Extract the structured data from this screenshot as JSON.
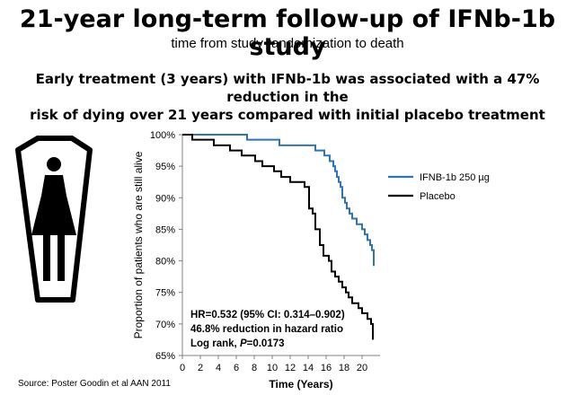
{
  "header": {
    "title": "21-year long-term follow-up of IFNb-1b study",
    "subtitle": "time from study randomization to death",
    "headline_line1": "Early treatment (3 years) with IFNb-1b was associated with a 47% reduction in the",
    "headline_line2": "risk of dying over 21 years compared with initial placebo treatment"
  },
  "footer": {
    "source": "Source: Poster Goodin  et al AAN 2011"
  },
  "annotation": {
    "line1": "HR=0.532  (95% CI: 0.314–0.902)",
    "line2": "46.8% reduction  in hazard ratio",
    "line3_prefix": "Log rank, ",
    "line3_p": "P",
    "line3_suffix": "=0.0173"
  },
  "colors": {
    "ifnb": "#2f74b5",
    "placebo": "#000000",
    "axis": "#808080",
    "icon_fill": "#000000"
  },
  "icon": "coffin-with-figure-icon",
  "chart_data": {
    "type": "line",
    "step": true,
    "xlabel": "Time (Years)",
    "ylabel": "Proportion of patients who are still alive",
    "xlim": [
      0,
      22
    ],
    "ylim": [
      65,
      100
    ],
    "xticks": [
      0,
      2,
      4,
      6,
      8,
      10,
      12,
      14,
      16,
      18,
      20
    ],
    "yticks": [
      65,
      70,
      75,
      80,
      85,
      90,
      95,
      100
    ],
    "ytick_labels": [
      "65%",
      "70%",
      "75%",
      "80%",
      "85%",
      "90%",
      "95%",
      "100%"
    ],
    "legend_position": "right",
    "series": [
      {
        "name": "IFNB-1b 250 µg",
        "color": "#2f74b5",
        "points": [
          [
            0,
            100
          ],
          [
            7.2,
            100
          ],
          [
            7.2,
            99.2
          ],
          [
            10.8,
            99.2
          ],
          [
            10.8,
            98.3
          ],
          [
            14.8,
            98.3
          ],
          [
            14.8,
            97.5
          ],
          [
            15.8,
            97.5
          ],
          [
            15.8,
            96.7
          ],
          [
            16.4,
            96.7
          ],
          [
            16.4,
            95.8
          ],
          [
            16.8,
            95.8
          ],
          [
            16.8,
            95.0
          ],
          [
            17.0,
            95.0
          ],
          [
            17.0,
            94.2
          ],
          [
            17.2,
            94.2
          ],
          [
            17.2,
            93.3
          ],
          [
            17.4,
            93.3
          ],
          [
            17.4,
            92.5
          ],
          [
            17.6,
            92.5
          ],
          [
            17.6,
            91.7
          ],
          [
            17.8,
            91.7
          ],
          [
            17.8,
            90.0
          ],
          [
            18.1,
            90.0
          ],
          [
            18.1,
            89.2
          ],
          [
            18.3,
            89.2
          ],
          [
            18.3,
            88.3
          ],
          [
            18.6,
            88.3
          ],
          [
            18.6,
            87.5
          ],
          [
            18.9,
            87.5
          ],
          [
            18.9,
            86.7
          ],
          [
            19.4,
            86.7
          ],
          [
            19.4,
            85.8
          ],
          [
            20.0,
            85.8
          ],
          [
            20.0,
            85.0
          ],
          [
            20.3,
            85.0
          ],
          [
            20.3,
            84.2
          ],
          [
            20.6,
            84.2
          ],
          [
            20.6,
            83.3
          ],
          [
            20.9,
            83.3
          ],
          [
            20.9,
            82.5
          ],
          [
            21.1,
            82.5
          ],
          [
            21.1,
            81.7
          ],
          [
            21.3,
            81.7
          ],
          [
            21.3,
            79.2
          ]
        ]
      },
      {
        "name": "Placebo",
        "color": "#000000",
        "points": [
          [
            0,
            100
          ],
          [
            1.1,
            100
          ],
          [
            1.1,
            99.2
          ],
          [
            3.5,
            99.2
          ],
          [
            3.5,
            98.3
          ],
          [
            5.3,
            98.3
          ],
          [
            5.3,
            97.5
          ],
          [
            6.6,
            97.5
          ],
          [
            6.6,
            96.7
          ],
          [
            8.1,
            96.7
          ],
          [
            8.1,
            95.8
          ],
          [
            8.9,
            95.8
          ],
          [
            8.9,
            95.0
          ],
          [
            10.2,
            95.0
          ],
          [
            10.2,
            94.2
          ],
          [
            11.0,
            94.2
          ],
          [
            11.0,
            93.3
          ],
          [
            12.0,
            93.3
          ],
          [
            12.0,
            92.5
          ],
          [
            13.6,
            92.5
          ],
          [
            13.6,
            91.7
          ],
          [
            14.1,
            91.7
          ],
          [
            14.1,
            88.3
          ],
          [
            14.5,
            88.3
          ],
          [
            14.5,
            87.5
          ],
          [
            14.8,
            87.5
          ],
          [
            14.8,
            85.0
          ],
          [
            15.3,
            85.0
          ],
          [
            15.3,
            82.5
          ],
          [
            15.7,
            82.5
          ],
          [
            15.7,
            80.8
          ],
          [
            16.3,
            80.8
          ],
          [
            16.3,
            80.0
          ],
          [
            16.6,
            80.0
          ],
          [
            16.6,
            78.3
          ],
          [
            17.0,
            78.3
          ],
          [
            17.0,
            77.5
          ],
          [
            17.4,
            77.5
          ],
          [
            17.4,
            76.7
          ],
          [
            17.8,
            76.7
          ],
          [
            17.8,
            75.8
          ],
          [
            18.2,
            75.8
          ],
          [
            18.2,
            75.0
          ],
          [
            18.5,
            75.0
          ],
          [
            18.5,
            74.2
          ],
          [
            18.9,
            74.2
          ],
          [
            18.9,
            73.3
          ],
          [
            19.6,
            73.3
          ],
          [
            19.6,
            72.5
          ],
          [
            20.0,
            72.5
          ],
          [
            20.0,
            71.7
          ],
          [
            20.6,
            71.7
          ],
          [
            20.6,
            70.8
          ],
          [
            21.0,
            70.8
          ],
          [
            21.0,
            70.0
          ],
          [
            21.2,
            70.0
          ],
          [
            21.2,
            67.5
          ]
        ]
      }
    ]
  }
}
